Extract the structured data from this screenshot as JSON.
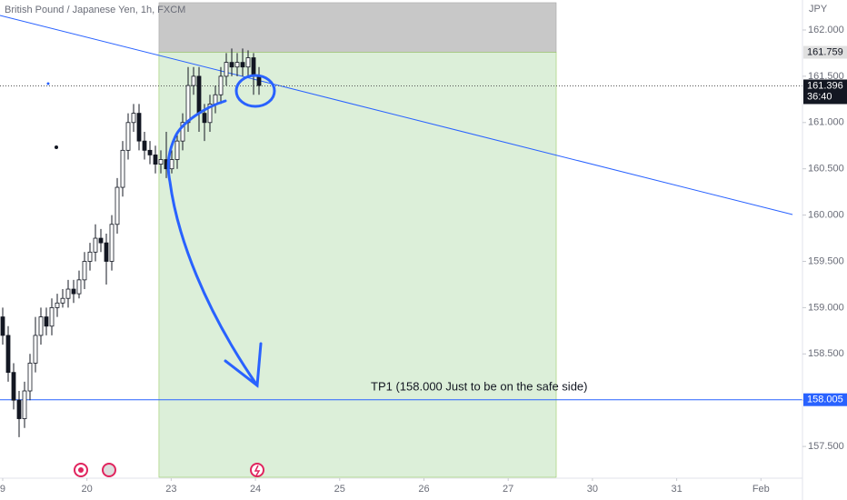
{
  "chart_data": {
    "type": "candlestick",
    "title": "British Pound / Japanese Yen, 1h, FXCM",
    "currency": "JPY",
    "ylim": [
      157.167,
      162.324
    ],
    "yticks": [
      {
        "value": 157.5,
        "label": "157.500"
      },
      {
        "value": 158.0,
        "label": "158.000"
      },
      {
        "value": 158.5,
        "label": "158.500"
      },
      {
        "value": 159.0,
        "label": "159.000"
      },
      {
        "value": 159.5,
        "label": "159.500"
      },
      {
        "value": 160.0,
        "label": "160.000"
      },
      {
        "value": 160.5,
        "label": "160.500"
      },
      {
        "value": 161.0,
        "label": "161.000"
      },
      {
        "value": 161.5,
        "label": "161.500"
      },
      {
        "value": 162.0,
        "label": "162.000"
      }
    ],
    "xlim": [
      -0.032,
      9.493
    ],
    "xticks": [
      {
        "value": 0,
        "label": "9"
      },
      {
        "value": 1,
        "label": "20"
      },
      {
        "value": 2,
        "label": "23"
      },
      {
        "value": 3,
        "label": "24"
      },
      {
        "value": 4,
        "label": "25"
      },
      {
        "value": 5,
        "label": "26"
      },
      {
        "value": 6,
        "label": "27"
      },
      {
        "value": 7,
        "label": "30"
      },
      {
        "value": 8,
        "label": "31"
      },
      {
        "value": 9,
        "label": "Feb"
      }
    ],
    "candles": {
      "open": [
        158.9,
        158.7,
        158.3,
        158.0,
        157.8,
        158.1,
        158.4,
        158.7,
        158.9,
        158.8,
        159.0,
        159.05,
        159.1,
        159.2,
        159.15,
        159.3,
        159.5,
        159.6,
        159.75,
        159.7,
        159.5,
        159.9,
        160.3,
        160.7,
        161.0,
        161.1,
        160.8,
        160.7,
        160.65,
        160.55,
        160.6,
        160.5,
        160.6,
        160.8,
        161.0,
        161.4,
        161.5,
        161.1,
        161.0,
        161.2,
        161.3,
        161.5,
        161.65,
        161.6,
        161.65,
        161.6,
        161.7,
        161.5
      ],
      "high": [
        159.0,
        158.8,
        158.4,
        158.1,
        158.2,
        158.5,
        158.9,
        159.0,
        159.0,
        159.1,
        159.15,
        159.2,
        159.3,
        159.3,
        159.4,
        159.6,
        159.7,
        159.9,
        159.85,
        159.8,
        160.0,
        160.4,
        160.8,
        161.1,
        161.2,
        161.2,
        160.9,
        160.8,
        160.75,
        160.7,
        160.9,
        160.7,
        160.9,
        161.1,
        161.6,
        161.6,
        161.6,
        161.2,
        161.3,
        161.4,
        161.6,
        161.75,
        161.8,
        161.75,
        161.8,
        161.78,
        161.75,
        161.6
      ],
      "low": [
        158.6,
        158.2,
        157.9,
        157.6,
        157.7,
        158.0,
        158.3,
        158.6,
        158.7,
        158.7,
        158.9,
        159.0,
        159.0,
        159.05,
        159.1,
        159.2,
        159.4,
        159.5,
        159.6,
        159.25,
        159.4,
        159.8,
        160.2,
        160.6,
        160.9,
        160.7,
        160.6,
        160.55,
        160.45,
        160.45,
        160.4,
        160.45,
        160.5,
        160.7,
        160.9,
        161.3,
        160.9,
        160.8,
        160.9,
        161.1,
        161.2,
        161.4,
        161.5,
        161.5,
        161.5,
        161.5,
        161.3,
        161.3
      ],
      "close": [
        158.7,
        158.3,
        158.0,
        157.8,
        158.1,
        158.4,
        158.7,
        158.9,
        158.8,
        159.0,
        159.05,
        159.1,
        159.2,
        159.15,
        159.3,
        159.5,
        159.6,
        159.75,
        159.7,
        159.5,
        159.9,
        160.3,
        160.7,
        161.0,
        161.1,
        160.8,
        160.7,
        160.65,
        160.55,
        160.6,
        160.5,
        160.6,
        160.8,
        161.0,
        161.4,
        161.5,
        161.1,
        161.0,
        161.2,
        161.3,
        161.5,
        161.65,
        161.6,
        161.65,
        161.6,
        161.7,
        161.5,
        161.4
      ]
    },
    "stop_zone": {
      "x": [
        1.855,
        6.57
      ],
      "y": [
        162.295,
        161.759
      ],
      "color": "#c8c8c8"
    },
    "target_zone": {
      "x": [
        1.855,
        6.57
      ],
      "y": [
        161.759,
        157.167
      ],
      "color": "#dcefd9"
    },
    "trendline": {
      "x": [
        -0.032,
        9.375
      ],
      "y": [
        162.157,
        160.006
      ],
      "color": "#2962ff"
    },
    "tp_line": {
      "value": 158.005,
      "label": "158.005",
      "color": "#2962ff"
    },
    "entry_price": {
      "value": 161.759,
      "label": "161.759"
    },
    "current_price": {
      "value": 161.396,
      "label": "161.396",
      "countdown": "36:40"
    },
    "annotation": "TP1 (158.000 Just to be on the safe side)"
  }
}
